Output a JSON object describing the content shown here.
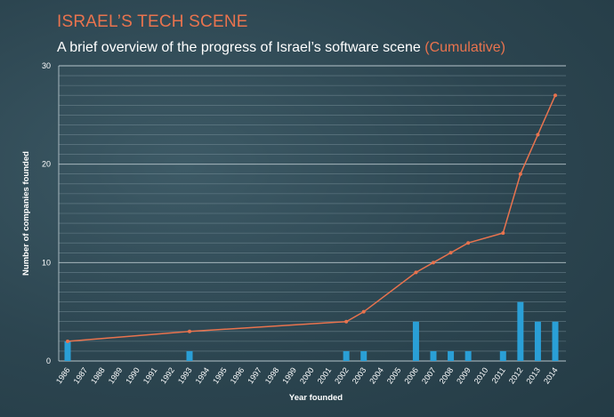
{
  "header": {
    "title": "ISRAEL’S TECH SCENE",
    "subtitle_main": "A brief overview of the progress of Israel’s software scene",
    "subtitle_highlight": "(Cumulative)"
  },
  "colors": {
    "bar": "#2a9fd6",
    "line": "#e9734e",
    "grid": "#7f96a0",
    "accent": "#e9734e"
  },
  "chart_data": {
    "type": "bar",
    "title": "ISRAEL’S TECH SCENE",
    "subtitle": "A brief overview of the progress of Israel’s software scene (Cumulative)",
    "xlabel": "Year founded",
    "ylabel": "Number of companies founded",
    "ylim": [
      0,
      30
    ],
    "yticks": [
      0,
      10,
      20,
      30
    ],
    "grid": true,
    "categories": [
      "1986",
      "1987",
      "1988",
      "1989",
      "1990",
      "1991",
      "1992",
      "1993",
      "1994",
      "1995",
      "1996",
      "1997",
      "1998",
      "1999",
      "2000",
      "2001",
      "2002",
      "2003",
      "2004",
      "2005",
      "2006",
      "2007",
      "2008",
      "2009",
      "2010",
      "2011",
      "2012",
      "2013",
      "2014"
    ],
    "series": [
      {
        "type": "bar",
        "values": [
          2,
          0,
          0,
          0,
          0,
          0,
          0,
          1,
          0,
          0,
          0,
          0,
          0,
          0,
          0,
          0,
          1,
          1,
          0,
          0,
          4,
          1,
          1,
          1,
          0,
          1,
          6,
          4,
          4
        ]
      },
      {
        "type": "line",
        "points": [
          {
            "x": "1986",
            "y": 2
          },
          {
            "x": "1993",
            "y": 3
          },
          {
            "x": "2002",
            "y": 4
          },
          {
            "x": "2003",
            "y": 5
          },
          {
            "x": "2006",
            "y": 9
          },
          {
            "x": "2007",
            "y": 10
          },
          {
            "x": "2008",
            "y": 11
          },
          {
            "x": "2009",
            "y": 12
          },
          {
            "x": "2011",
            "y": 13
          },
          {
            "x": "2012",
            "y": 19
          },
          {
            "x": "2013",
            "y": 23
          },
          {
            "x": "2014",
            "y": 27
          }
        ]
      }
    ]
  }
}
